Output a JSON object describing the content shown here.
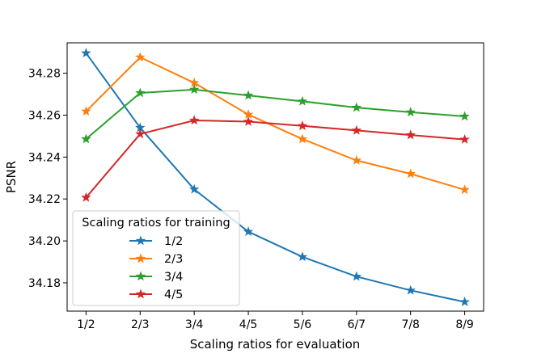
{
  "chart_data": {
    "type": "line",
    "title": "",
    "xlabel": "Scaling ratios for evaluation",
    "ylabel": "PSNR",
    "categories": [
      "1/2",
      "2/3",
      "3/4",
      "4/5",
      "5/6",
      "6/7",
      "7/8",
      "8/9"
    ],
    "ylim": [
      34.1665,
      34.2945
    ],
    "yticks": [
      "34.18",
      "34.20",
      "34.22",
      "34.24",
      "34.26",
      "34.28"
    ],
    "grid": false,
    "legend": {
      "title": "Scaling ratios for training",
      "position": "lower-left"
    },
    "marker": "star",
    "series": [
      {
        "name": "1/2",
        "color": "#1f77b4",
        "values": [
          34.2896,
          34.254,
          34.2246,
          34.2044,
          34.1924,
          34.183,
          34.1764,
          34.1709
        ]
      },
      {
        "name": "2/3",
        "color": "#ff7f0e",
        "values": [
          34.2618,
          34.2876,
          34.2754,
          34.2603,
          34.2486,
          34.2384,
          34.232,
          34.2244
        ]
      },
      {
        "name": "3/4",
        "color": "#2ca02c",
        "values": [
          34.2486,
          34.2706,
          34.2722,
          34.2694,
          34.2666,
          34.2636,
          34.2614,
          34.2594
        ]
      },
      {
        "name": "4/5",
        "color": "#d62728",
        "values": [
          34.2207,
          34.251,
          34.2575,
          34.2569,
          34.2549,
          34.2527,
          34.2505,
          34.2484
        ]
      }
    ]
  }
}
